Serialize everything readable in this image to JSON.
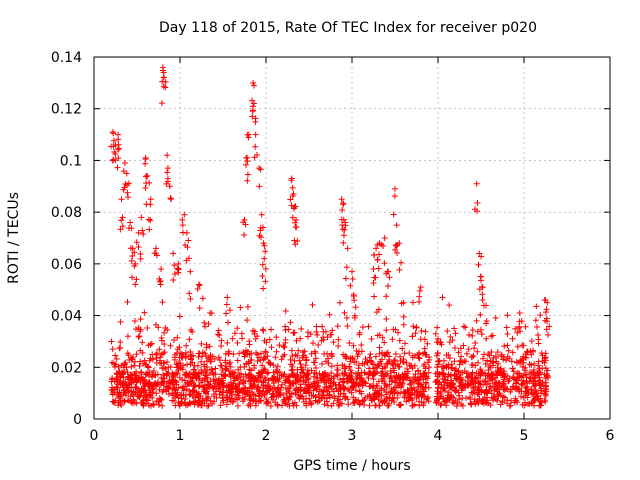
{
  "chart_data": {
    "type": "scatter",
    "title": "Day 118 of 2015, Rate Of TEC Index for receiver p020",
    "xlabel": "GPS time / hours",
    "ylabel": "ROTI / TECUs",
    "xlim": [
      0,
      6
    ],
    "ylim": [
      0,
      0.14
    ],
    "x_ticks": [
      "0",
      "1",
      "2",
      "3",
      "4",
      "5",
      "6"
    ],
    "y_ticks": [
      "0",
      "0.02",
      "0.04",
      "0.06",
      "0.08",
      "0.1",
      "0.12",
      "0.14"
    ],
    "grid": true,
    "marker": "+",
    "series_color": "#ff0000",
    "baseline_segments": [
      [
        0.2,
        3.9
      ],
      [
        3.97,
        5.28
      ]
    ],
    "spikes": [
      {
        "x": 0.22,
        "y": 0.111
      },
      {
        "x": 0.25,
        "y": 0.106
      },
      {
        "x": 0.28,
        "y": 0.11
      },
      {
        "x": 0.32,
        "y": 0.085
      },
      {
        "x": 0.36,
        "y": 0.099
      },
      {
        "x": 0.38,
        "y": 0.095
      },
      {
        "x": 0.42,
        "y": 0.076
      },
      {
        "x": 0.45,
        "y": 0.066
      },
      {
        "x": 0.48,
        "y": 0.06
      },
      {
        "x": 0.52,
        "y": 0.072
      },
      {
        "x": 0.55,
        "y": 0.078
      },
      {
        "x": 0.6,
        "y": 0.101
      },
      {
        "x": 0.62,
        "y": 0.094
      },
      {
        "x": 0.66,
        "y": 0.085
      },
      {
        "x": 0.72,
        "y": 0.066
      },
      {
        "x": 0.78,
        "y": 0.058
      },
      {
        "x": 0.8,
        "y": 0.136
      },
      {
        "x": 0.81,
        "y": 0.134
      },
      {
        "x": 0.85,
        "y": 0.102
      },
      {
        "x": 0.86,
        "y": 0.097
      },
      {
        "x": 0.88,
        "y": 0.09
      },
      {
        "x": 0.92,
        "y": 0.064
      },
      {
        "x": 0.98,
        "y": 0.06
      },
      {
        "x": 1.05,
        "y": 0.079
      },
      {
        "x": 1.08,
        "y": 0.072
      },
      {
        "x": 1.12,
        "y": 0.057
      },
      {
        "x": 1.22,
        "y": 0.052
      },
      {
        "x": 1.35,
        "y": 0.041
      },
      {
        "x": 1.55,
        "y": 0.047
      },
      {
        "x": 1.75,
        "y": 0.077
      },
      {
        "x": 1.77,
        "y": 0.101
      },
      {
        "x": 1.8,
        "y": 0.11
      },
      {
        "x": 1.85,
        "y": 0.13
      },
      {
        "x": 1.86,
        "y": 0.122
      },
      {
        "x": 1.88,
        "y": 0.11
      },
      {
        "x": 1.92,
        "y": 0.097
      },
      {
        "x": 1.95,
        "y": 0.079
      },
      {
        "x": 1.97,
        "y": 0.068
      },
      {
        "x": 1.98,
        "y": 0.062
      },
      {
        "x": 2.3,
        "y": 0.093
      },
      {
        "x": 2.32,
        "y": 0.087
      },
      {
        "x": 2.33,
        "y": 0.082
      },
      {
        "x": 2.35,
        "y": 0.077
      },
      {
        "x": 2.88,
        "y": 0.085
      },
      {
        "x": 2.9,
        "y": 0.083
      },
      {
        "x": 2.92,
        "y": 0.076
      },
      {
        "x": 2.95,
        "y": 0.066
      },
      {
        "x": 3.0,
        "y": 0.057
      },
      {
        "x": 3.02,
        "y": 0.048
      },
      {
        "x": 3.25,
        "y": 0.058
      },
      {
        "x": 3.28,
        "y": 0.066
      },
      {
        "x": 3.32,
        "y": 0.068
      },
      {
        "x": 3.38,
        "y": 0.07
      },
      {
        "x": 3.42,
        "y": 0.057
      },
      {
        "x": 3.5,
        "y": 0.089
      },
      {
        "x": 3.52,
        "y": 0.075
      },
      {
        "x": 3.55,
        "y": 0.068
      },
      {
        "x": 3.6,
        "y": 0.045
      },
      {
        "x": 3.8,
        "y": 0.051
      },
      {
        "x": 4.45,
        "y": 0.091
      },
      {
        "x": 4.48,
        "y": 0.064
      },
      {
        "x": 4.5,
        "y": 0.055
      },
      {
        "x": 4.52,
        "y": 0.051
      },
      {
        "x": 4.95,
        "y": 0.041
      },
      {
        "x": 5.25,
        "y": 0.046
      },
      {
        "x": 5.27,
        "y": 0.045
      }
    ]
  }
}
